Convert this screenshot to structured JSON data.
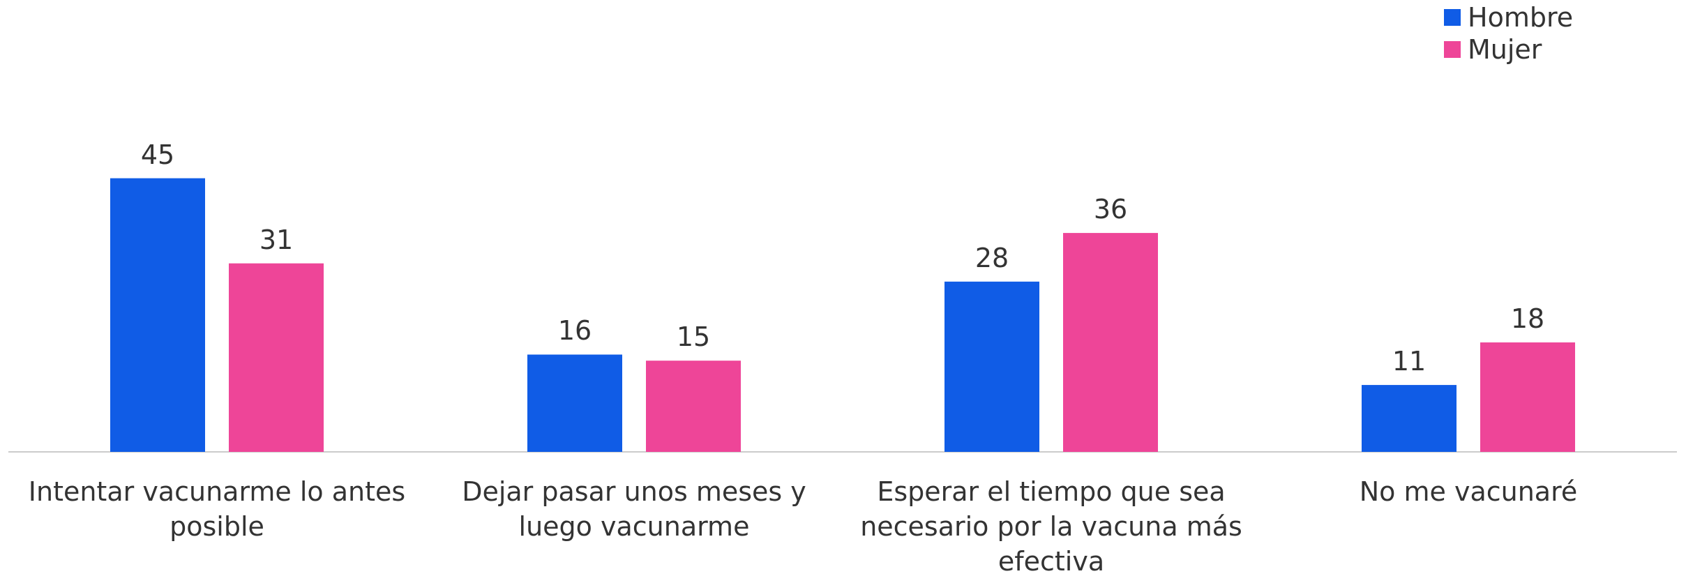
{
  "chart_data": {
    "type": "bar",
    "categories": [
      "Intentar vacunarme lo antes posible",
      "Dejar pasar unos meses y luego vacunarme",
      "Esperar el tiempo que sea necesario por la vacuna más efectiva",
      "No me vacunaré"
    ],
    "series": [
      {
        "name": "Hombre",
        "color": "#105ce6",
        "values": [
          45,
          16,
          28,
          11
        ]
      },
      {
        "name": "Mujer",
        "color": "#ee4598",
        "values": [
          31,
          15,
          36,
          18
        ]
      }
    ],
    "ylim": [
      0,
      50
    ],
    "legend": "top-right"
  }
}
